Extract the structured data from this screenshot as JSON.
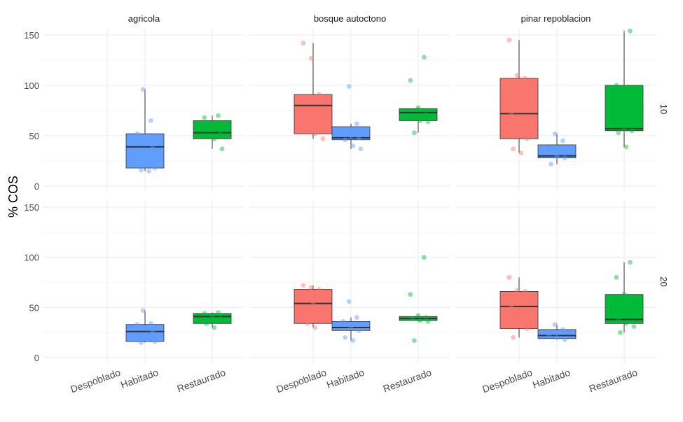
{
  "chart_data": {
    "type": "boxplot",
    "ylabel": "% COS",
    "ylim": [
      0,
      155
    ],
    "yticks": [
      0,
      50,
      100,
      150
    ],
    "categories": [
      "Despoblado",
      "Habitado",
      "Restaurado"
    ],
    "column_facets": [
      "agricola",
      "bosque autoctono",
      "pinar repoblacion"
    ],
    "row_facets": [
      "10",
      "20"
    ],
    "colors": {
      "Despoblado": "#F8766D",
      "Habitado": "#619CFF",
      "Restaurado": "#00BA38"
    },
    "panels": [
      {
        "column": "agricola",
        "row": "10",
        "boxes": [
          {
            "category": "Habitado",
            "q1": 18,
            "median": 39,
            "q3": 52,
            "whisker_low": 15,
            "whisker_high": 96,
            "points": [
              96,
              65,
              52,
              45,
              38,
              30,
              22,
              18,
              16,
              15
            ]
          },
          {
            "category": "Restaurado",
            "q1": 47,
            "median": 53,
            "q3": 65,
            "whisker_low": 37,
            "whisker_high": 70,
            "points": [
              70,
              68,
              58,
              53,
              50,
              47,
              37
            ]
          }
        ]
      },
      {
        "column": "bosque autoctono",
        "row": "10",
        "boxes": [
          {
            "category": "Despoblado",
            "q1": 52,
            "median": 80,
            "q3": 91,
            "whisker_low": 47,
            "whisker_high": 142,
            "points": [
              142,
              127,
              91,
              88,
              85,
              70,
              55,
              52,
              47
            ]
          },
          {
            "category": "Habitado",
            "q1": 46,
            "median": 48,
            "q3": 59,
            "whisker_low": 37,
            "whisker_high": 62,
            "points": [
              99,
              62,
              55,
              50,
              48,
              46,
              40,
              37
            ]
          },
          {
            "category": "Restaurado",
            "q1": 65,
            "median": 73,
            "q3": 77,
            "whisker_low": 53,
            "whisker_high": 78,
            "points": [
              128,
              105,
              78,
              75,
              70,
              65,
              64,
              53
            ]
          }
        ]
      },
      {
        "column": "pinar repoblacion",
        "row": "10",
        "boxes": [
          {
            "category": "Despoblado",
            "q1": 47,
            "median": 72,
            "q3": 107,
            "whisker_low": 33,
            "whisker_high": 145,
            "points": [
              145,
              110,
              107,
              72,
              55,
              47,
              37,
              33
            ]
          },
          {
            "category": "Habitado",
            "q1": 28,
            "median": 30,
            "q3": 41,
            "whisker_low": 22,
            "whisker_high": 52,
            "points": [
              52,
              45,
              38,
              30,
              28,
              22
            ]
          },
          {
            "category": "Restaurado",
            "q1": 55,
            "median": 57,
            "q3": 100,
            "whisker_low": 39,
            "whisker_high": 154,
            "points": [
              154,
              100,
              57,
              55,
              53,
              39
            ]
          }
        ]
      },
      {
        "column": "agricola",
        "row": "20",
        "boxes": [
          {
            "category": "Habitado",
            "q1": 16,
            "median": 26,
            "q3": 33,
            "whisker_low": 15,
            "whisker_high": 47,
            "points": [
              47,
              34,
              33,
              30,
              26,
              22,
              18,
              16,
              15
            ]
          },
          {
            "category": "Restaurado",
            "q1": 34,
            "median": 41,
            "q3": 44,
            "whisker_low": 30,
            "whisker_high": 45,
            "points": [
              45,
              44,
              41,
              39,
              34,
              30
            ]
          }
        ]
      },
      {
        "column": "bosque autoctono",
        "row": "20",
        "boxes": [
          {
            "category": "Despoblado",
            "q1": 34,
            "median": 54,
            "q3": 68,
            "whisker_low": 30,
            "whisker_high": 72,
            "points": [
              72,
              70,
              68,
              60,
              54,
              45,
              34,
              30
            ]
          },
          {
            "category": "Habitado",
            "q1": 27,
            "median": 30,
            "q3": 36,
            "whisker_low": 17,
            "whisker_high": 40,
            "points": [
              56,
              40,
              36,
              30,
              27,
              20,
              17
            ]
          },
          {
            "category": "Restaurado",
            "q1": 37,
            "median": 39,
            "q3": 41,
            "whisker_low": 36,
            "whisker_high": 42,
            "points": [
              100,
              63,
              42,
              40,
              39,
              37,
              36,
              17
            ]
          }
        ]
      },
      {
        "column": "pinar repoblacion",
        "row": "20",
        "boxes": [
          {
            "category": "Despoblado",
            "q1": 29,
            "median": 51,
            "q3": 66,
            "whisker_low": 20,
            "whisker_high": 80,
            "points": [
              80,
              67,
              66,
              51,
              40,
              29,
              20
            ]
          },
          {
            "category": "Habitado",
            "q1": 19,
            "median": 22,
            "q3": 28,
            "whisker_low": 18,
            "whisker_high": 33,
            "points": [
              33,
              28,
              22,
              20,
              18
            ]
          },
          {
            "category": "Restaurado",
            "q1": 34,
            "median": 38,
            "q3": 63,
            "whisker_low": 25,
            "whisker_high": 95,
            "points": [
              95,
              80,
              63,
              45,
              38,
              34,
              31,
              25
            ]
          }
        ]
      }
    ]
  }
}
